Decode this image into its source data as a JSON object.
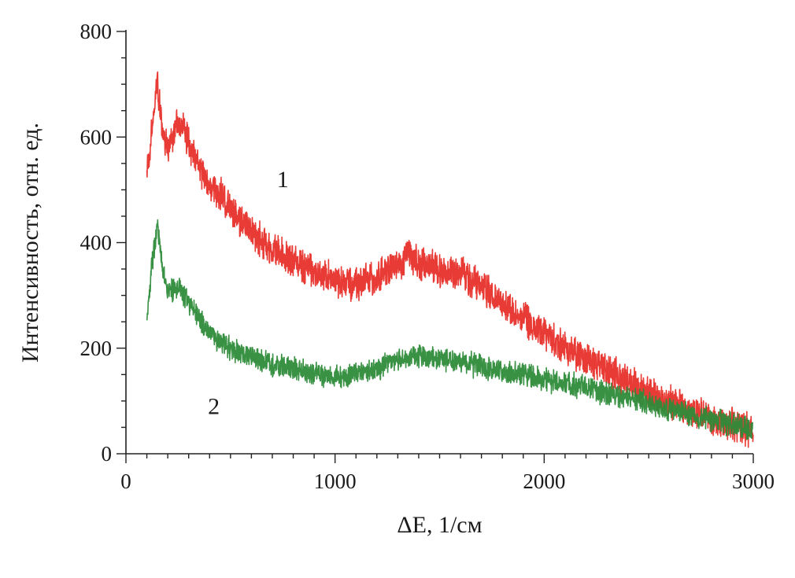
{
  "chart_data": {
    "type": "line",
    "xlabel": "ΔE, 1/см",
    "ylabel": "Интенсивность, отн. ед.",
    "xlim": [
      0,
      3000
    ],
    "ylim": [
      0,
      800
    ],
    "x_ticks": [
      0,
      1000,
      2000,
      3000
    ],
    "x_tick_labels": [
      "0",
      "1000",
      "2000",
      "3000"
    ],
    "y_ticks": [
      0,
      200,
      400,
      600,
      800
    ],
    "y_tick_labels": [
      "0",
      "200",
      "400",
      "600",
      "800"
    ],
    "grid": false,
    "legend": "none",
    "series": [
      {
        "label": "1",
        "color": "#e8302a",
        "x": [
          100,
          125,
          150,
          175,
          200,
          250,
          300,
          350,
          400,
          450,
          500,
          600,
          700,
          800,
          900,
          1000,
          1100,
          1200,
          1300,
          1350,
          1400,
          1500,
          1600,
          1700,
          1800,
          1900,
          2000,
          2100,
          2200,
          2300,
          2400,
          2500,
          2600,
          2700,
          2800,
          2900,
          3000
        ],
        "y": [
          530,
          620,
          700,
          610,
          580,
          630,
          590,
          540,
          510,
          490,
          465,
          420,
          385,
          365,
          345,
          330,
          320,
          335,
          355,
          380,
          360,
          350,
          345,
          315,
          285,
          255,
          230,
          200,
          180,
          160,
          135,
          115,
          95,
          80,
          65,
          55,
          45
        ],
        "noise": 38
      },
      {
        "label": "2",
        "color": "#2e8b3a",
        "x": [
          100,
          125,
          150,
          175,
          200,
          250,
          300,
          350,
          400,
          450,
          500,
          600,
          700,
          800,
          900,
          1000,
          1100,
          1200,
          1300,
          1400,
          1500,
          1600,
          1700,
          1800,
          1900,
          2000,
          2100,
          2200,
          2300,
          2400,
          2500,
          2600,
          2700,
          2800,
          2900,
          3000
        ],
        "y": [
          260,
          360,
          440,
          350,
          310,
          315,
          290,
          255,
          230,
          210,
          200,
          185,
          170,
          160,
          150,
          145,
          150,
          160,
          180,
          185,
          180,
          175,
          165,
          155,
          150,
          140,
          135,
          125,
          115,
          105,
          95,
          85,
          75,
          65,
          55,
          45
        ],
        "noise": 26
      }
    ],
    "annotations": [
      {
        "text": "1",
        "x": 750,
        "y": 520
      },
      {
        "text": "2",
        "x": 420,
        "y": 90
      }
    ]
  }
}
